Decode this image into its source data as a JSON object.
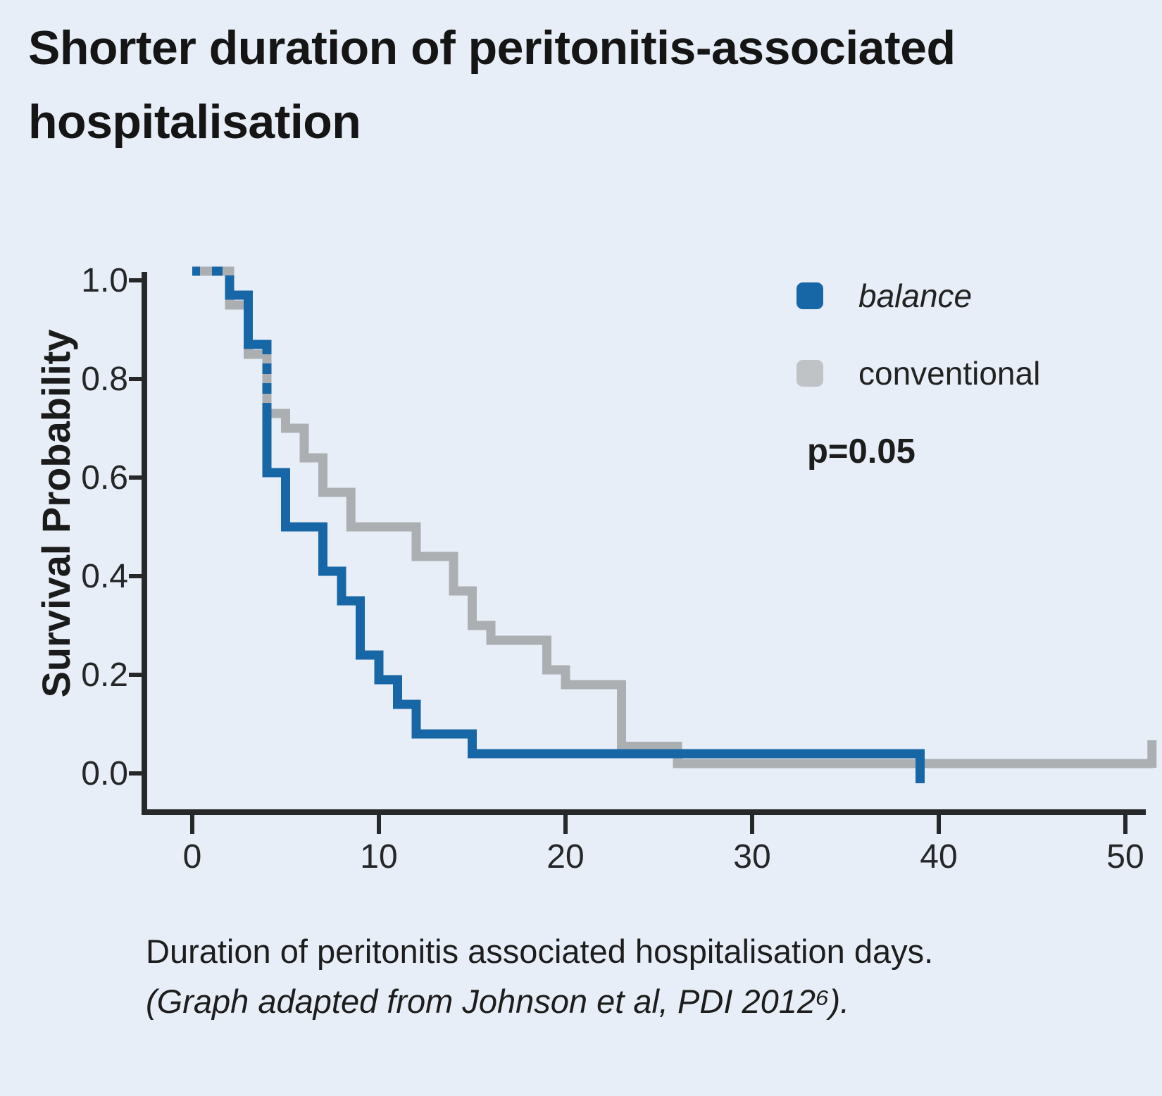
{
  "page": {
    "background": "#e8eef7"
  },
  "title": "Shorter duration of peritonitis-associated hospitalisation",
  "y_axis_label": "Survival Probability",
  "legend": {
    "items": [
      {
        "label": "balance",
        "color": "#1767a7",
        "italic": true
      },
      {
        "label": "conventional",
        "color": "#c0c3c6",
        "italic": false
      }
    ],
    "p_value": "p=0.05"
  },
  "caption": {
    "line1": "Duration of peritonitis associated hospitalisation days.",
    "line2": "(Graph adapted from Johnson et al, PDI 2012⁶)."
  },
  "chart_data": {
    "type": "line",
    "subtype": "kaplan-meier-step",
    "title": "Shorter duration of peritonitis-associated hospitalisation",
    "xlabel": "Duration of peritonitis associated hospitalisation days",
    "ylabel": "Survival Probability",
    "xlim": [
      0,
      51.5
    ],
    "ylim": [
      0.0,
      1.0
    ],
    "x_ticks": [
      0,
      10,
      20,
      30,
      40,
      50
    ],
    "y_ticks": [
      1.0,
      0.8,
      0.6,
      0.4,
      0.2,
      0.0
    ],
    "grid": false,
    "legend_position": "upper right",
    "annotations": [
      "p=0.05"
    ],
    "series": [
      {
        "name": "balance",
        "color": "#1767a7",
        "censored_at": 39,
        "censor_mark": "down-tick",
        "steps": [
          [
            0,
            1.0
          ],
          [
            2,
            0.97
          ],
          [
            3,
            0.87
          ],
          [
            4,
            0.61
          ],
          [
            5,
            0.5
          ],
          [
            7,
            0.41
          ],
          [
            8,
            0.35
          ],
          [
            9,
            0.24
          ],
          [
            10,
            0.19
          ],
          [
            11,
            0.14
          ],
          [
            12,
            0.08
          ],
          [
            15,
            0.04
          ]
        ]
      },
      {
        "name": "conventional",
        "color": "#acafb2",
        "censored_at": 51.5,
        "censor_mark": "up-tick",
        "steps": [
          [
            0,
            1.0
          ],
          [
            2,
            0.95
          ],
          [
            3,
            0.85
          ],
          [
            4,
            0.73
          ],
          [
            5,
            0.7
          ],
          [
            6,
            0.64
          ],
          [
            7,
            0.57
          ],
          [
            8.5,
            0.5
          ],
          [
            12,
            0.44
          ],
          [
            14,
            0.37
          ],
          [
            15,
            0.3
          ],
          [
            16,
            0.27
          ],
          [
            19,
            0.21
          ],
          [
            20,
            0.18
          ],
          [
            23,
            0.055
          ],
          [
            26,
            0.02
          ]
        ]
      }
    ]
  }
}
